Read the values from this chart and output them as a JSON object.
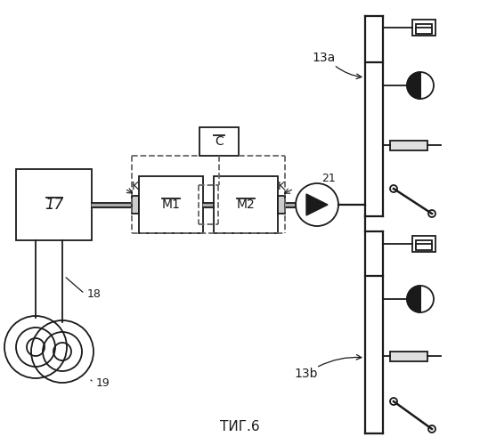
{
  "title": "ΤИГ.6",
  "bg_color": "#ffffff",
  "line_color": "#1a1a1a",
  "label_17": "17",
  "label_M1": "M1",
  "label_M2": "M2",
  "label_C": "C",
  "label_K": "K",
  "label_18": "18",
  "label_19": "19",
  "label_21": "21",
  "label_13a": "13a",
  "label_13b": "13b"
}
